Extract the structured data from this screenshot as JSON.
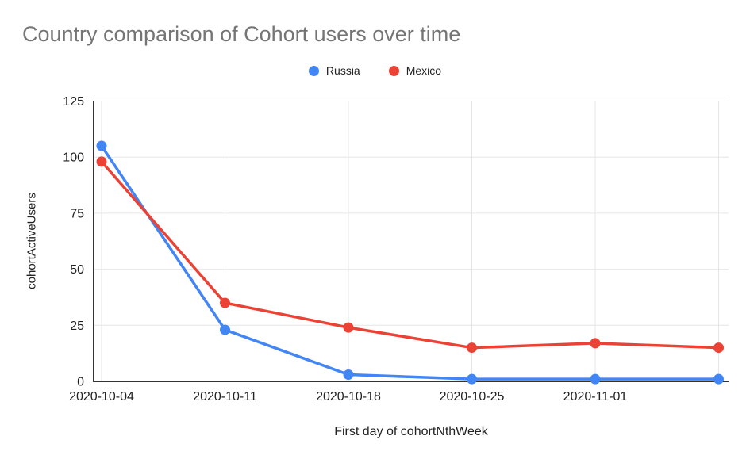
{
  "chart_data": {
    "type": "line",
    "title": "Country comparison of Cohort users over time",
    "xlabel": "First day of cohortNthWeek",
    "ylabel": "cohortActiveUsers",
    "x_tick_labels": [
      "2020-10-04",
      "2020-10-11",
      "2020-10-18",
      "2020-10-25",
      "2020-11-01",
      ""
    ],
    "y_ticks": [
      0,
      25,
      50,
      75,
      100,
      125
    ],
    "ylim": [
      0,
      125
    ],
    "grid": true,
    "legend_position": "top",
    "series": [
      {
        "name": "Russia",
        "color": "#4285F4",
        "values": [
          105,
          23,
          3,
          1,
          1,
          1
        ]
      },
      {
        "name": "Mexico",
        "color": "#EA4335",
        "values": [
          98,
          35,
          24,
          15,
          17,
          15
        ]
      }
    ],
    "colors": {
      "grid": "#e6e6e6",
      "axis": "#333333",
      "title": "#757575",
      "text": "#222222",
      "background": "#ffffff"
    }
  }
}
